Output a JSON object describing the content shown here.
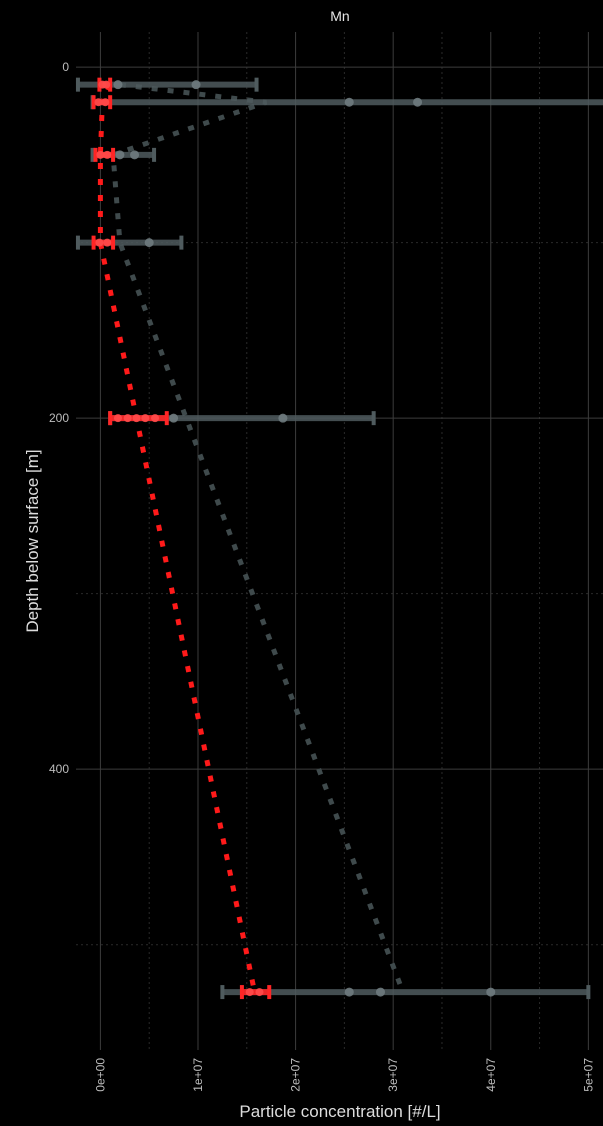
{
  "chart_data": {
    "type": "scatter",
    "title": "Mn",
    "xlabel": "Particle concentration [#/L]",
    "ylabel": "Depth below surface [m]",
    "x_ticks": [
      "0e+00",
      "1e+07",
      "2e+07",
      "3e+07",
      "4e+07",
      "5e+07"
    ],
    "x_tick_values": [
      0,
      10000000,
      20000000,
      30000000,
      40000000,
      50000000
    ],
    "y_ticks": [
      "0",
      "200",
      "400"
    ],
    "y_tick_values": [
      0,
      200,
      400
    ],
    "xlim": [
      -2500000,
      51500000
    ],
    "ylim": [
      560,
      -20
    ],
    "y_inverted": true,
    "grid": true,
    "background": "#000000",
    "series": [
      {
        "style": "grey",
        "color": "#4a5659",
        "trend_line": [
          [
            2000000,
            10
          ],
          [
            17000000,
            20
          ],
          [
            1300000,
            50
          ],
          [
            2000000,
            100
          ],
          [
            31000000,
            527
          ]
        ],
        "errorbars": [
          {
            "y": 10,
            "xmin": -2300000,
            "xmax": 16000000
          },
          {
            "y": 20,
            "xmin": -800000,
            "xmax": 52000000
          },
          {
            "y": 50,
            "xmin": -800000,
            "xmax": 5500000
          },
          {
            "y": 100,
            "xmin": -2300000,
            "xmax": 8300000
          },
          {
            "y": 200,
            "xmin": 1000000,
            "xmax": 28000000
          },
          {
            "y": 527,
            "xmin": 12500000,
            "xmax": 50000000
          }
        ],
        "points": [
          {
            "x": 1800000,
            "y": 10
          },
          {
            "x": 9800000,
            "y": 10
          },
          {
            "x": 25500000,
            "y": 20
          },
          {
            "x": 32500000,
            "y": 20
          },
          {
            "x": 2000000,
            "y": 50
          },
          {
            "x": 3500000,
            "y": 50
          },
          {
            "x": 5000000,
            "y": 100
          },
          {
            "x": 7500000,
            "y": 200
          },
          {
            "x": 18700000,
            "y": 200
          },
          {
            "x": 25500000,
            "y": 527
          },
          {
            "x": 28700000,
            "y": 527
          },
          {
            "x": 40000000,
            "y": 527
          }
        ]
      },
      {
        "style": "red",
        "color": "#ff2020",
        "trend_line": [
          [
            1000000,
            10
          ],
          [
            200000,
            20
          ],
          [
            0,
            50
          ],
          [
            0,
            100
          ],
          [
            15800000,
            527
          ]
        ],
        "errorbars": [
          {
            "y": 10,
            "xmin": -100000,
            "xmax": 1000000
          },
          {
            "y": 20,
            "xmin": -700000,
            "xmax": 1000000
          },
          {
            "y": 50,
            "xmin": -500000,
            "xmax": 1300000
          },
          {
            "y": 100,
            "xmin": -700000,
            "xmax": 1300000
          },
          {
            "y": 200,
            "xmin": 1000000,
            "xmax": 6800000
          },
          {
            "y": 527,
            "xmin": 14500000,
            "xmax": 17300000
          }
        ],
        "points": [
          {
            "x": 200000,
            "y": 10
          },
          {
            "x": 600000,
            "y": 10
          },
          {
            "x": -200000,
            "y": 20
          },
          {
            "x": 500000,
            "y": 20
          },
          {
            "x": 0,
            "y": 50
          },
          {
            "x": 700000,
            "y": 50
          },
          {
            "x": -100000,
            "y": 100
          },
          {
            "x": 700000,
            "y": 100
          },
          {
            "x": 1800000,
            "y": 200
          },
          {
            "x": 2800000,
            "y": 200
          },
          {
            "x": 3700000,
            "y": 200
          },
          {
            "x": 4600000,
            "y": 200
          },
          {
            "x": 5600000,
            "y": 200
          },
          {
            "x": 15300000,
            "y": 527
          },
          {
            "x": 16300000,
            "y": 527
          }
        ]
      }
    ]
  }
}
